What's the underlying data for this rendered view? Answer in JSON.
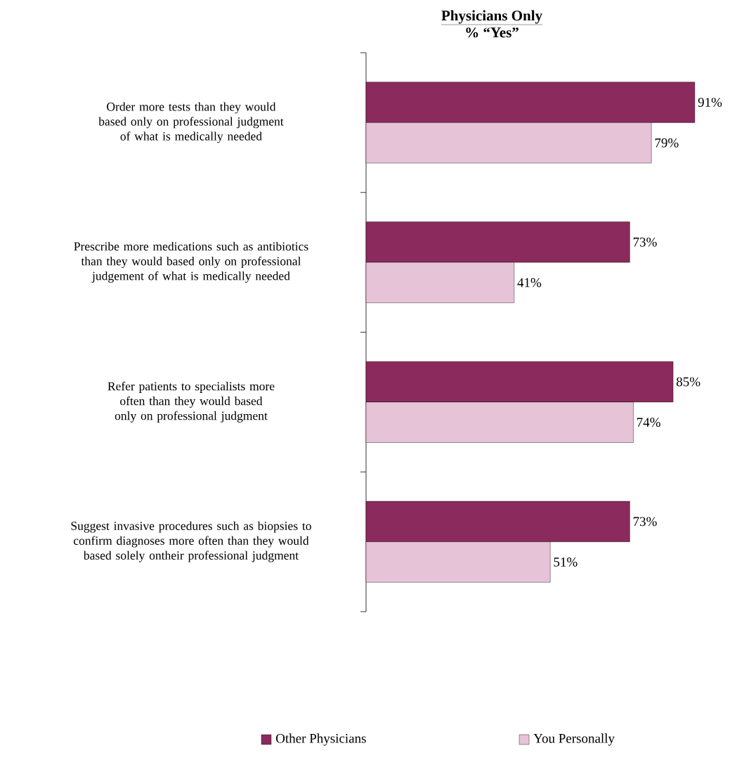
{
  "chart_data": {
    "type": "bar",
    "orientation": "horizontal",
    "title": "Physicians Only",
    "subtitle": "% “Yes”",
    "categories": [
      "Order more tests than they would based only on professional judgment of what is medically needed",
      "Prescribe more medications such as antibiotics than they would based only on professional judgement of what is medically needed",
      "Refer patients to specialists more often than they would based only on professional judgment",
      "Suggest invasive procedures such as biopsies to confirm diagnoses more often than they would based solely ontheir professional judgment"
    ],
    "legend": "bottom",
    "series": [
      {
        "name": "Other Physicians",
        "color": "#8b2a5c",
        "values": [
          91,
          73,
          85,
          73
        ],
        "value_labels": [
          "91%",
          "73%",
          "85%",
          "73%"
        ]
      },
      {
        "name": "You Personally",
        "color": "#e6c3d6",
        "values": [
          79,
          41,
          74,
          51
        ],
        "value_labels": [
          "79%",
          "41%",
          "74%",
          "51%"
        ]
      }
    ]
  }
}
